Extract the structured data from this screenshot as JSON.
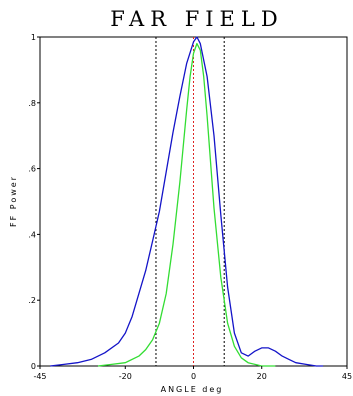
{
  "chart_data": {
    "type": "line",
    "title": "FAR FIELD",
    "xlabel": "ANGLE deg",
    "ylabel": "FF Power",
    "xlim": [
      -45,
      45
    ],
    "ylim": [
      0,
      1
    ],
    "x_ticks": [
      {
        "value": -45,
        "label": "-45"
      },
      {
        "value": -20,
        "label": "-20"
      },
      {
        "value": 0,
        "label": "0"
      },
      {
        "value": 20,
        "label": "20"
      },
      {
        "value": 45,
        "label": "45"
      }
    ],
    "y_ticks": [
      {
        "value": 0,
        "label": "0"
      },
      {
        "value": 0.2,
        "label": ".2"
      },
      {
        "value": 0.4,
        "label": ".4"
      },
      {
        "value": 0.6,
        "label": ".6"
      },
      {
        "value": 0.8,
        "label": ".8"
      },
      {
        "value": 1,
        "label": "1"
      }
    ],
    "grid": false,
    "legend": "none",
    "series": [
      {
        "color": "#1414c8",
        "x": [
          -42,
          -38,
          -34,
          -30,
          -26,
          -22,
          -20,
          -18,
          -16,
          -14,
          -12,
          -10,
          -8,
          -6,
          -4,
          -2,
          0,
          1,
          2,
          4,
          6,
          8,
          10,
          12,
          14,
          16,
          18,
          20,
          22,
          24,
          26,
          28,
          30,
          33,
          36,
          38
        ],
        "y": [
          0.0,
          0.005,
          0.01,
          0.02,
          0.04,
          0.07,
          0.1,
          0.15,
          0.22,
          0.29,
          0.38,
          0.47,
          0.59,
          0.71,
          0.82,
          0.92,
          0.985,
          1.0,
          0.98,
          0.88,
          0.7,
          0.46,
          0.24,
          0.1,
          0.04,
          0.03,
          0.045,
          0.055,
          0.055,
          0.045,
          0.03,
          0.02,
          0.01,
          0.005,
          0.0,
          0.0
        ]
      },
      {
        "color": "#33dd33",
        "x": [
          -28,
          -24,
          -20,
          -16,
          -14,
          -12,
          -10,
          -8,
          -6,
          -4,
          -2,
          -1,
          0,
          1,
          2,
          3,
          4,
          6,
          8,
          10,
          12,
          14,
          16,
          20,
          24
        ],
        "y": [
          0.0,
          0.005,
          0.01,
          0.03,
          0.05,
          0.08,
          0.13,
          0.22,
          0.37,
          0.56,
          0.78,
          0.88,
          0.95,
          0.98,
          0.96,
          0.88,
          0.76,
          0.48,
          0.27,
          0.13,
          0.06,
          0.025,
          0.01,
          0.0,
          0.0
        ]
      }
    ],
    "reference_lines": [
      {
        "x": -11,
        "color": "#000000",
        "style": "dotted"
      },
      {
        "x": 0,
        "color": "#dd2222",
        "style": "dotted"
      },
      {
        "x": 9,
        "color": "#000000",
        "style": "dotted"
      }
    ]
  }
}
